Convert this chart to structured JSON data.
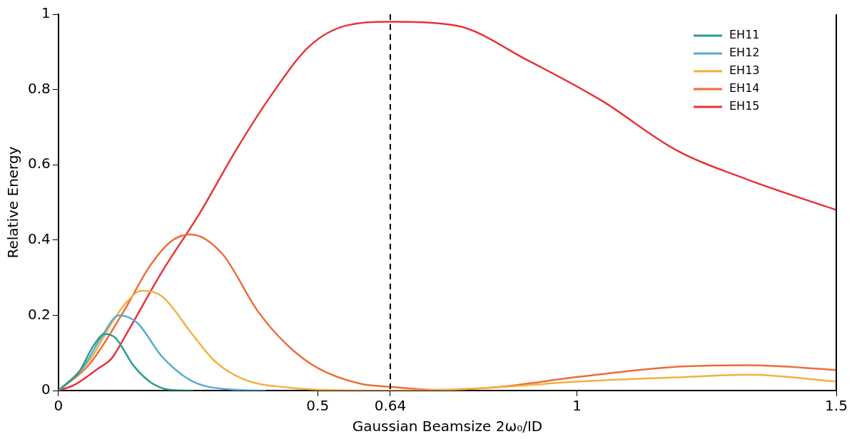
{
  "chart_data": {
    "type": "line",
    "xlabel": "Gaussian Beamsize 2ω₀/ID",
    "ylabel": "Relative Energy",
    "xlim": [
      0,
      1.5
    ],
    "xticks": [
      0,
      0.5,
      0.64,
      1,
      1.5
    ],
    "ylim": [
      0,
      1
    ],
    "yticks": [
      0,
      0.2,
      0.4,
      0.6,
      0.8,
      1
    ],
    "grid": false,
    "legend": "top right",
    "marker": "none",
    "line_style": "solid",
    "ref_lines": [
      {
        "axis": "x",
        "value": 0.64,
        "color": "#000000",
        "line_style": "dashed"
      }
    ],
    "series": [
      {
        "name": "EH11",
        "color": "#2a9d8f",
        "x": [
          0,
          0.04,
          0.068,
          0.089,
          0.11,
          0.145,
          0.18,
          0.216,
          0.26
        ],
        "values": [
          0,
          0.05,
          0.12,
          0.15,
          0.14,
          0.066,
          0.02,
          0.002,
          0
        ]
      },
      {
        "name": "EH12",
        "color": "#5aaad6",
        "x": [
          0,
          0.047,
          0.082,
          0.117,
          0.152,
          0.2,
          0.258,
          0.343,
          0.4
        ],
        "values": [
          0,
          0.06,
          0.14,
          0.2,
          0.18,
          0.09,
          0.025,
          0.002,
          0
        ]
      },
      {
        "name": "EH13",
        "color": "#f5b041",
        "x": [
          0,
          0.06,
          0.103,
          0.131,
          0.16,
          0.2,
          0.258,
          0.3,
          0.357,
          0.442,
          0.512,
          0.696,
          0.837,
          1.006,
          1.19,
          1.33,
          1.5
        ],
        "values": [
          0,
          0.08,
          0.18,
          0.234,
          0.265,
          0.25,
          0.15,
          0.08,
          0.03,
          0.008,
          0.002,
          0,
          0.008,
          0.024,
          0.035,
          0.042,
          0.024
        ]
      },
      {
        "name": "EH14",
        "color": "#ee6c3a",
        "x": [
          0,
          0.06,
          0.13,
          0.174,
          0.216,
          0.255,
          0.315,
          0.385,
          0.442,
          0.5,
          0.583,
          0.64,
          0.724,
          0.837,
          1.006,
          1.19,
          1.33,
          1.5
        ],
        "values": [
          0,
          0.07,
          0.22,
          0.326,
          0.395,
          0.415,
          0.365,
          0.21,
          0.12,
          0.06,
          0.018,
          0.01,
          0.002,
          0.008,
          0.037,
          0.063,
          0.067,
          0.055
        ]
      },
      {
        "name": "EH15",
        "color": "#e8343a",
        "x": [
          0,
          0.032,
          0.075,
          0.103,
          0.131,
          0.2,
          0.272,
          0.343,
          0.413,
          0.484,
          0.555,
          0.64,
          0.766,
          0.907,
          1.048,
          1.19,
          1.33,
          1.5
        ],
        "values": [
          0,
          0.016,
          0.057,
          0.086,
          0.15,
          0.316,
          0.47,
          0.64,
          0.79,
          0.915,
          0.97,
          0.98,
          0.97,
          0.876,
          0.77,
          0.64,
          0.56,
          0.48
        ]
      }
    ]
  }
}
